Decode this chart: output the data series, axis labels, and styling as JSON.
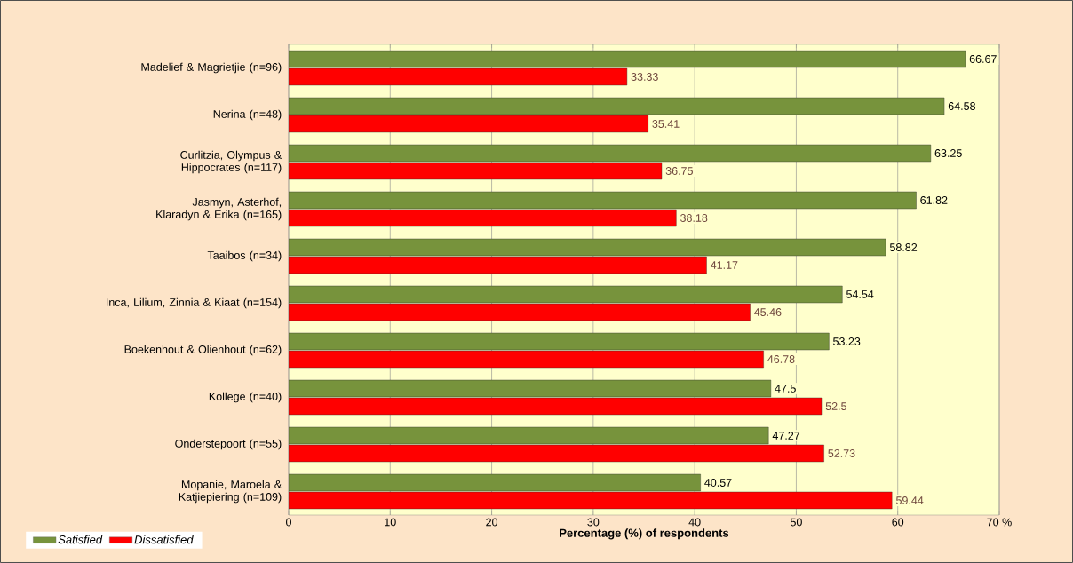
{
  "chart_data": {
    "type": "bar",
    "orientation": "horizontal",
    "xlabel": "**Percentage (%) of respondents**",
    "categories": [
      "Madelief &  Magrietjie (n=96)",
      "Nerina (n=48)",
      "Curlitzia, Olympus & Hippocrates (n=117)",
      "Jasmyn, Asterhof, Klaradyn & Erika (n=165)",
      "Taaibos (n=34)",
      "Inca, Lilium, Zinnia & Kiaat (n=154)",
      "Boekenhout & Olienhout (n=62)",
      "Kollege (n=40)",
      "Onderstepoort (n=55)",
      "Mopanie, Maroela & Katjiepiering (n=109)"
    ],
    "series": [
      {
        "name": "*Satisfied*",
        "color": "#77933c",
        "values": [
          66.67,
          64.58,
          63.25,
          61.82,
          58.82,
          54.54,
          53.23,
          47.5,
          47.27,
          40.57
        ]
      },
      {
        "name": "*Dissatisfied*",
        "color": "#ff0000",
        "values": [
          33.33,
          35.41,
          36.75,
          38.18,
          41.17,
          45.46,
          46.78,
          52.5,
          52.73,
          59.44
        ]
      }
    ],
    "xlim": [
      0,
      70
    ],
    "xticks": [
      0,
      10,
      20,
      30,
      40,
      50,
      60,
      {
        "value": 70,
        "label": "70 %"
      }
    ],
    "data_labels": true,
    "grid": "x",
    "legend": "bottom left"
  }
}
